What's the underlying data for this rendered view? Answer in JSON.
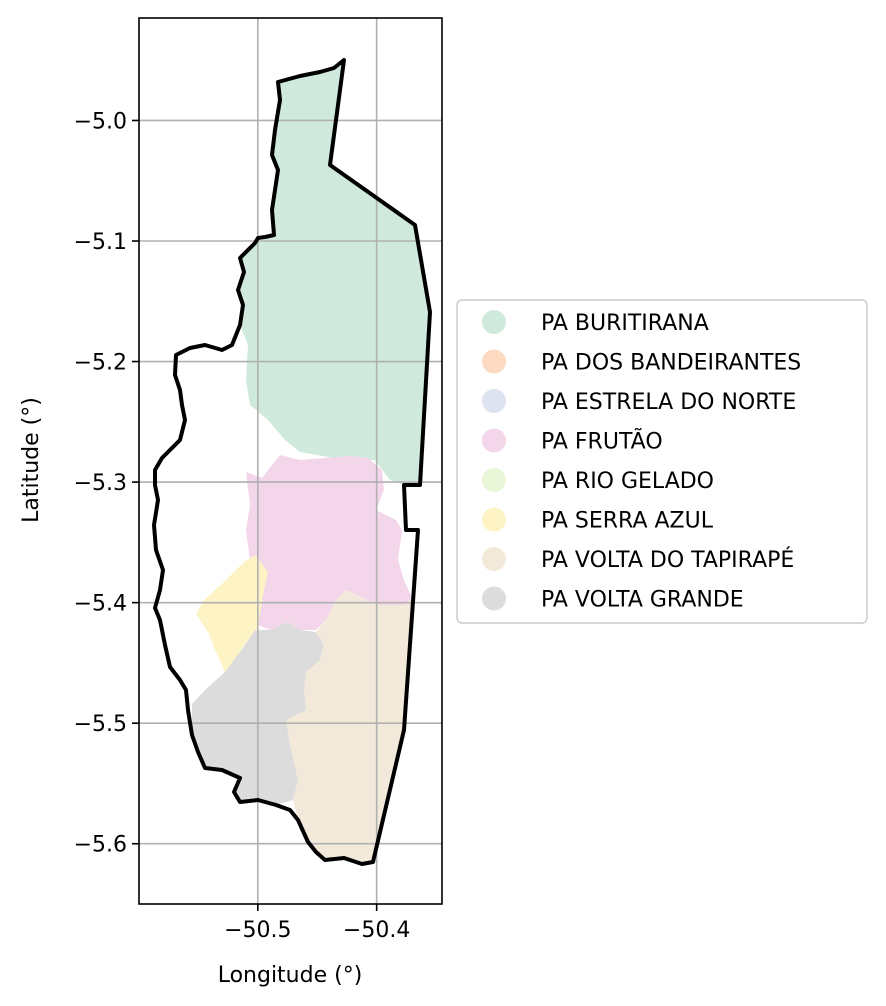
{
  "chart_data": {
    "type": "map",
    "title": "",
    "xlabel": "Longitude (°)",
    "ylabel": "Latitude (°)",
    "xlim": [
      -50.6,
      -50.345
    ],
    "ylim": [
      -5.65,
      -4.915
    ],
    "xticks": [
      -50.5,
      -50.4
    ],
    "xtick_labels": [
      "−50.5",
      "−50.4"
    ],
    "yticks": [
      -5.0,
      -5.1,
      -5.2,
      -5.3,
      -5.4,
      -5.5,
      -5.6
    ],
    "ytick_labels": [
      "−5.0",
      "−5.1",
      "−5.2",
      "−5.3",
      "−5.4",
      "−5.5",
      "−5.6"
    ],
    "grid": true,
    "legend_position": "right",
    "series": [
      {
        "name": "PA BURITIRANA",
        "color": "#cfeadc"
      },
      {
        "name": "PA DOS BANDEIRANTES",
        "color": "#fdd9c2"
      },
      {
        "name": "PA ESTRELA DO NORTE",
        "color": "#dde3f1"
      },
      {
        "name": "PA FRUTÃO",
        "color": "#f4d6eb"
      },
      {
        "name": "PA RIO GELADO",
        "color": "#e9f6d8"
      },
      {
        "name": "PA SERRA AZUL",
        "color": "#fdf3c4"
      },
      {
        "name": "PA VOLTA DO TAPIRAPÉ",
        "color": "#f3e9db"
      },
      {
        "name": "PA VOLTA GRANDE",
        "color": "#dcdcdc"
      }
    ]
  }
}
